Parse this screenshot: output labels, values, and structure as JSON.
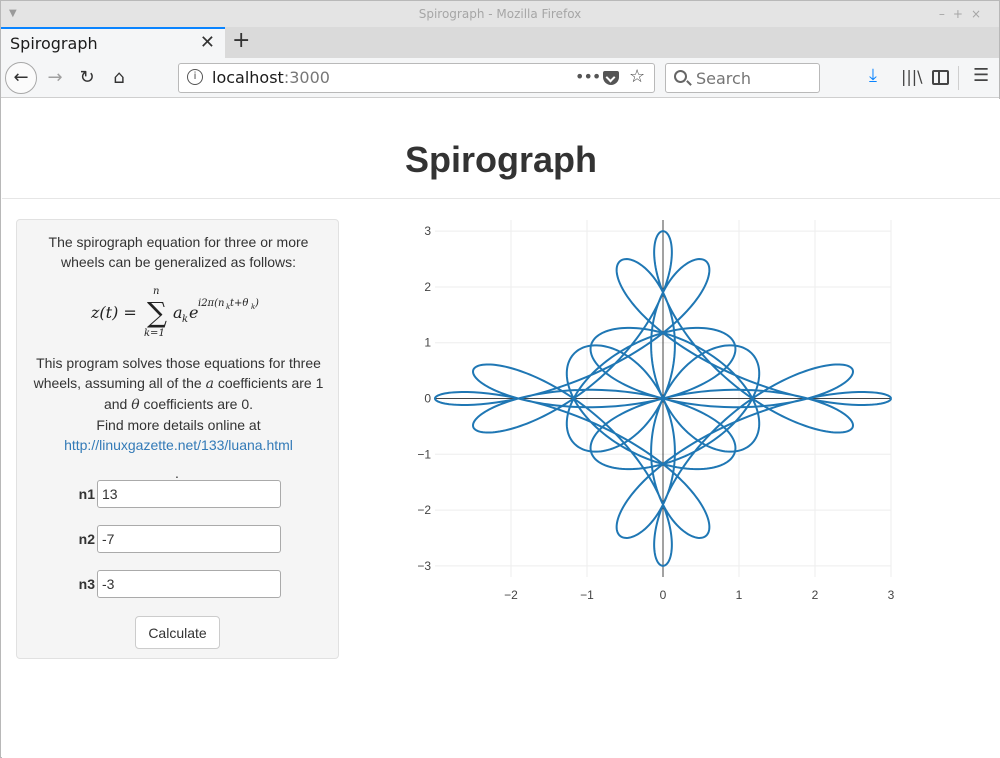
{
  "window": {
    "title": "Spirograph - Mozilla Firefox",
    "tab_title": "Spirograph",
    "url_host": "localhost",
    "url_port": ":3000",
    "search_placeholder": "Search"
  },
  "page": {
    "title": "Spirograph",
    "intro": "The spirograph equation for three or more wheels can be generalized as follows:",
    "desc_line1": "This program solves those equations for three wheels, assuming all of the",
    "desc_line2": "coefficients are 1 and",
    "desc_line3": "coefficients are 0.",
    "desc_line4": "Find more details online at",
    "link_text": "http://linuxgazette.net/133/luana.html",
    "dot": ".",
    "fields": [
      {
        "label": "n1",
        "value": "13"
      },
      {
        "label": "n2",
        "value": "-7"
      },
      {
        "label": "n3",
        "value": "-3"
      }
    ],
    "calculate_label": "Calculate"
  },
  "chart_data": {
    "type": "line",
    "equation": "z(t) = sum_{k=1}^{n} a_k e^{i2π(n_k t + θ_k)}",
    "n": [
      13,
      -7,
      -3
    ],
    "a": [
      1,
      1,
      1
    ],
    "theta": [
      0,
      0,
      0
    ],
    "xlim": [
      -3,
      3
    ],
    "ylim": [
      -3.2,
      3.2
    ],
    "xticks": [
      -2,
      -1,
      0,
      1,
      2,
      3
    ],
    "yticks": [
      -3,
      -2,
      -1,
      0,
      1,
      2,
      3
    ],
    "grid": true,
    "line_color": "#1f77b4"
  }
}
